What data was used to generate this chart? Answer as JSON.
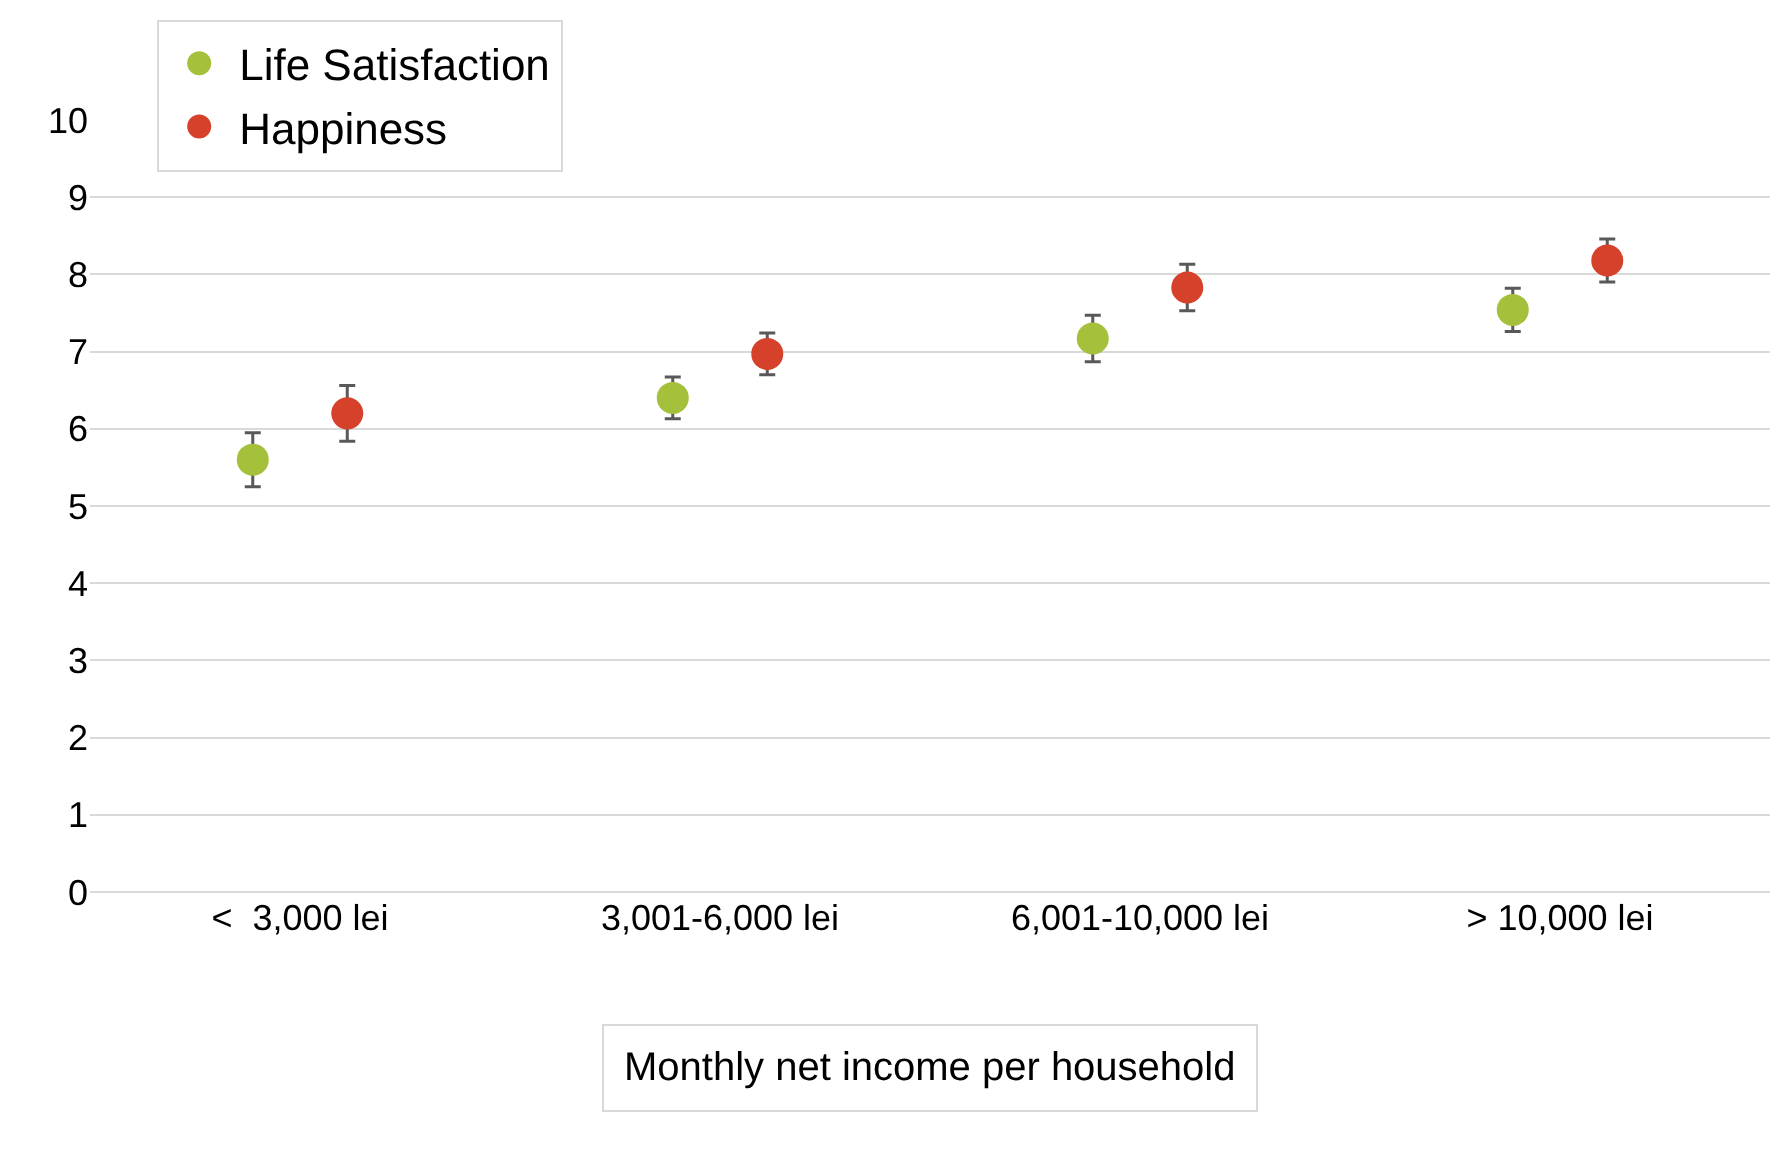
{
  "chart_data": {
    "type": "scatter",
    "xlabel": "Monthly net income per household",
    "categories": [
      "<  3,000 lei",
      "3,001-6,000 lei",
      "6,001-10,000 lei",
      "> 10,000 lei"
    ],
    "series": [
      {
        "name": "Life Satisfaction",
        "color": "#a5c03a",
        "values": [
          5.6,
          6.4,
          7.17,
          7.54
        ],
        "errors": [
          0.35,
          0.27,
          0.3,
          0.28
        ]
      },
      {
        "name": "Happiness",
        "color": "#d5412a",
        "values": [
          6.2,
          6.97,
          7.83,
          8.18
        ],
        "errors": [
          0.36,
          0.27,
          0.3,
          0.28
        ]
      }
    ],
    "ylim": [
      0,
      10
    ],
    "yticks": [
      0,
      1,
      2,
      3,
      4,
      5,
      6,
      7,
      8,
      9,
      10
    ],
    "grid": "y",
    "legend": "top left",
    "marker": "circle"
  }
}
